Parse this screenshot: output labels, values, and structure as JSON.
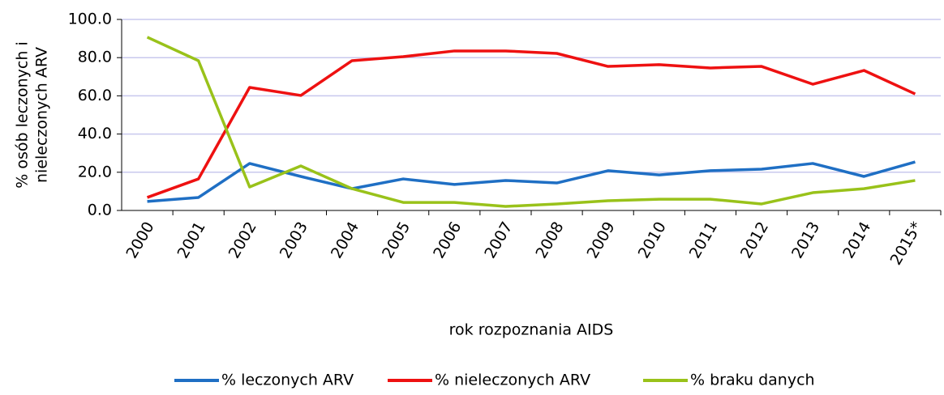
{
  "chart_data": {
    "type": "line",
    "ylabel": [
      "% osób leczonych i",
      "nieleczonych ARV"
    ],
    "xlabel": "rok rozpoznania AIDS",
    "categories": [
      "2000",
      "2001",
      "2002",
      "2003",
      "2004",
      "2005",
      "2006",
      "2007",
      "2008",
      "2009",
      "2010",
      "2011",
      "2012",
      "2013",
      "2014",
      "2015*"
    ],
    "series": [
      {
        "name": "% leczonych ARV",
        "color": "#1f6fc4",
        "values": [
          4.7,
          6.8,
          24.6,
          17.8,
          11.4,
          16.5,
          13.6,
          15.7,
          14.4,
          20.8,
          18.6,
          20.8,
          21.6,
          24.6,
          17.8,
          25.4
        ]
      },
      {
        "name": "% nieleczonych ARV",
        "color": "#ee1111",
        "values": [
          6.8,
          16.5,
          64.4,
          60.2,
          78.4,
          80.5,
          83.5,
          83.5,
          82.2,
          75.4,
          76.3,
          74.6,
          75.4,
          66.1,
          73.3,
          61.0
        ]
      },
      {
        "name": "% braku danych",
        "color": "#99c21a",
        "values": [
          90.7,
          78.4,
          12.3,
          23.3,
          11.4,
          4.2,
          4.2,
          2.1,
          3.4,
          5.1,
          5.9,
          5.9,
          3.4,
          9.3,
          11.4,
          15.7
        ]
      }
    ],
    "ylim": [
      0,
      100
    ],
    "yticks": [
      {
        "value": 0,
        "label": "0.0"
      },
      {
        "value": 20,
        "label": "20.0"
      },
      {
        "value": 40,
        "label": "40.0"
      },
      {
        "value": 60,
        "label": "60.0"
      },
      {
        "value": 80,
        "label": "80.0"
      },
      {
        "value": 100,
        "label": "100.0"
      }
    ],
    "grid": true,
    "legend": "bottom"
  }
}
